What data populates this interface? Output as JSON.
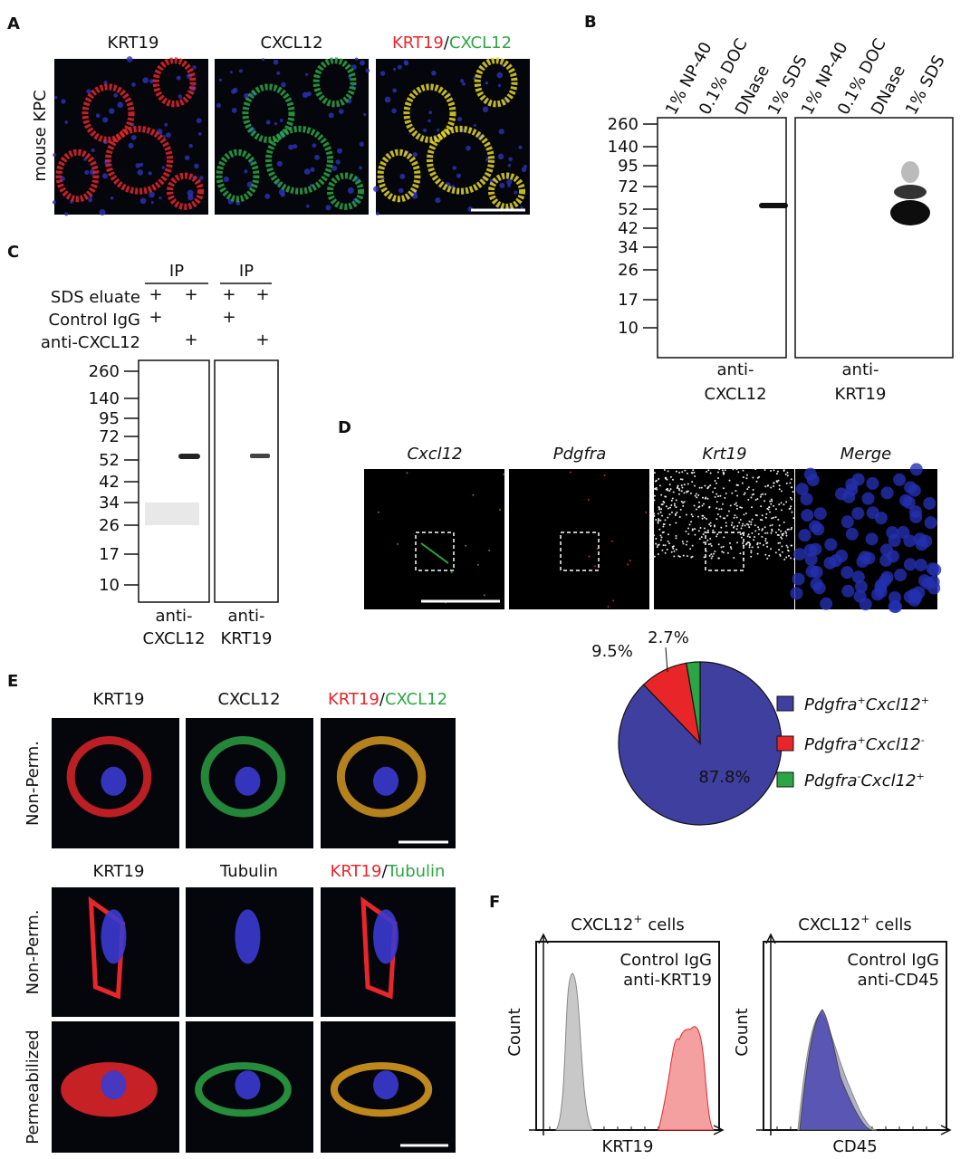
{
  "panel_a": {
    "label": "A",
    "columns": [
      "KRT19",
      "CXCL12"
    ],
    "merge": [
      "KRT19",
      "/",
      "CXCL12"
    ],
    "row_label": "mouse KPC"
  },
  "panel_b": {
    "label": "B",
    "lanes": [
      "1% NP-40",
      "0.1% DOC",
      "DNase",
      "1% SDS"
    ],
    "markers": [
      260,
      140,
      95,
      72,
      52,
      42,
      34,
      26,
      17,
      10
    ],
    "blots": [
      [
        "anti-",
        "CXCL12"
      ],
      [
        "anti-",
        "KRT19"
      ]
    ]
  },
  "panel_c": {
    "label": "C",
    "groups": [
      "IP",
      "IP"
    ],
    "rows": [
      {
        "label": "SDS eluate",
        "signs": [
          "+",
          "+",
          "+",
          "+"
        ]
      },
      {
        "label": "Control IgG",
        "signs": [
          "+",
          null,
          "+",
          null
        ]
      },
      {
        "label": "anti-CXCL12",
        "signs": [
          null,
          "+",
          null,
          "+"
        ]
      }
    ],
    "markers": [
      260,
      140,
      95,
      72,
      52,
      42,
      34,
      26,
      17,
      10
    ],
    "blots": [
      [
        "anti-",
        "CXCL12"
      ],
      [
        "anti-",
        "KRT19"
      ]
    ]
  },
  "panel_d": {
    "label": "D",
    "columns": [
      "Cxcl12",
      "Pdgfra",
      "Krt19",
      "Merge"
    ],
    "chart_data": {
      "type": "pie",
      "values": [
        87.8,
        9.5,
        2.7
      ],
      "value_labels": [
        "87.8%",
        "9.5%",
        "2.7%"
      ],
      "colors": [
        "#3f3f9f",
        "#e8262a",
        "#2ca644"
      ],
      "legend": [
        {
          "gene1": "Pdgfra",
          "sign1": "+",
          "gene2": "Cxcl12",
          "sign2": "+"
        },
        {
          "gene1": "Pdgfra",
          "sign1": "+",
          "gene2": "Cxcl12",
          "sign2": "-"
        },
        {
          "gene1": "Pdgfra",
          "sign1": "-",
          "gene2": "Cxcl12",
          "sign2": "+"
        }
      ]
    }
  },
  "panel_e": {
    "label": "E",
    "sections": [
      {
        "columns": [
          "KRT19",
          "CXCL12"
        ],
        "merge": [
          "KRT19",
          "/",
          "CXCL12"
        ],
        "rows": [
          "Non-Perm."
        ]
      },
      {
        "columns": [
          "KRT19",
          "Tubulin"
        ],
        "merge": [
          "KRT19",
          "/",
          "Tubulin"
        ],
        "rows": [
          "Non-Perm.",
          "Permeabilized"
        ]
      }
    ]
  },
  "panel_f": {
    "label": "F",
    "plots": [
      {
        "title": {
          "marker": "CXCL12",
          "sign": "+",
          "rest": "cells"
        },
        "legend": [
          "Control IgG",
          "anti-KRT19"
        ],
        "y_label": "Count",
        "x_label": "KRT19"
      },
      {
        "title": {
          "marker": "CXCL12",
          "sign": "+",
          "rest": "cells"
        },
        "legend": [
          "Control IgG",
          "anti-CD45"
        ],
        "y_label": "Count",
        "x_label": "CD45"
      }
    ]
  }
}
